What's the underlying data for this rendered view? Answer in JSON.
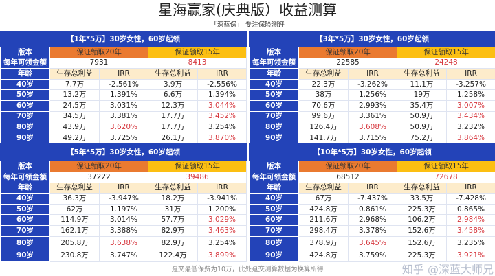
{
  "title": "星海赢家(庆典版）收益测算",
  "subtitle": "「深蓝保」 专注保险测评",
  "labels": {
    "version": "版本",
    "annual": "每年可领金额",
    "age": "年龄",
    "benefit": "生存总利益",
    "irr": "IRR",
    "plan20": "保证领取20年",
    "plan15": "保证领取15年"
  },
  "tables": [
    {
      "header": "【1年*5万】30岁女性，60岁起领",
      "annual20": "7931",
      "annual15": "8413",
      "rows": [
        [
          "40岁",
          "7.7万",
          "-2.561%",
          "3.9万",
          "-2.556%"
        ],
        [
          "50岁",
          "13.2万",
          "1.391%",
          "6.6万",
          "1.394%"
        ],
        [
          "60岁",
          "24.5万",
          "3.031%",
          "12.3万",
          "3.044%"
        ],
        [
          "70岁",
          "34.5万",
          "3.381%",
          "17.7万",
          "3.452%"
        ],
        [
          "80岁",
          "43.9万",
          "3.620%",
          "17.7万",
          "3.254%"
        ],
        [
          "90岁",
          "49.2万",
          "3.725%",
          "26.1万",
          "3.870%"
        ]
      ]
    },
    {
      "header": "【3年*5万】30岁女性，60岁起领",
      "annual20": "22585",
      "annual15": "24248",
      "rows": [
        [
          "40岁",
          "22.3万",
          "-3.262%",
          "11.1万",
          "-3.257%"
        ],
        [
          "50岁",
          "38万",
          "1.256%",
          "19万",
          "1.258%"
        ],
        [
          "60岁",
          "70.6万",
          "2.993%",
          "35.4万",
          "3.007%"
        ],
        [
          "70岁",
          "99.6万",
          "3.361%",
          "50.9万",
          "3.434%"
        ],
        [
          "80岁",
          "126.4万",
          "3.608%",
          "50.9万",
          "3.232%"
        ],
        [
          "90岁",
          "141.7万",
          "3.715%",
          "75.2万",
          "3.864%"
        ]
      ]
    },
    {
      "header": "【5年*5万】30岁女性，60岁起领",
      "annual20": "37222",
      "annual15": "39486",
      "rows": [
        [
          "40岁",
          "36.3万",
          "-3.947%",
          "18.2万",
          "-3.941%"
        ],
        [
          "50岁",
          "62万",
          "1.197%",
          "31万",
          "1.200%"
        ],
        [
          "60岁",
          "114.9万",
          "3.014%",
          "57.7万",
          "3.029%"
        ],
        [
          "70岁",
          "162.1万",
          "3.388%",
          "82.9万",
          "3.463%"
        ],
        [
          "80岁",
          "205.8万",
          "3.638%",
          "82.9万",
          "3.254%"
        ],
        [
          "90岁",
          "230.8万",
          "3.747%",
          "122.4万",
          "3.899%"
        ]
      ]
    },
    {
      "header": "【10年*5万】30岁女性，60岁起领",
      "annual20": "68512",
      "annual15": "72678",
      "rows": [
        [
          "40岁",
          "67万",
          "-7.437%",
          "33.5万",
          "-7.428%"
        ],
        [
          "50岁",
          "424.8万",
          "0.861%",
          "225.3万",
          "0.865%"
        ],
        [
          "60岁",
          "211.6万",
          "2.968%",
          "106.2万",
          "2.984%"
        ],
        [
          "70岁",
          "298.4万",
          "3.378%",
          "152.6万",
          "3.458%"
        ],
        [
          "80岁",
          "378.9万",
          "3.645%",
          "152.6万",
          "3.235%"
        ],
        [
          "90岁",
          "424.8万",
          "3.759%",
          "225.3万",
          "3.921%"
        ]
      ]
    }
  ],
  "red_cells": {
    "row2_col4": true,
    "row3_col4": true,
    "row4_col2": true,
    "row5_col4": true
  },
  "footer": "趸交最低保费为10万，此处趸交测算数据为换算所得",
  "watermark": "知乎 @深蓝大师兄",
  "colors": {
    "header": "#2343b8",
    "orange": "#ea7a30",
    "yellow": "#fcbf12",
    "red": "#d73a41"
  }
}
